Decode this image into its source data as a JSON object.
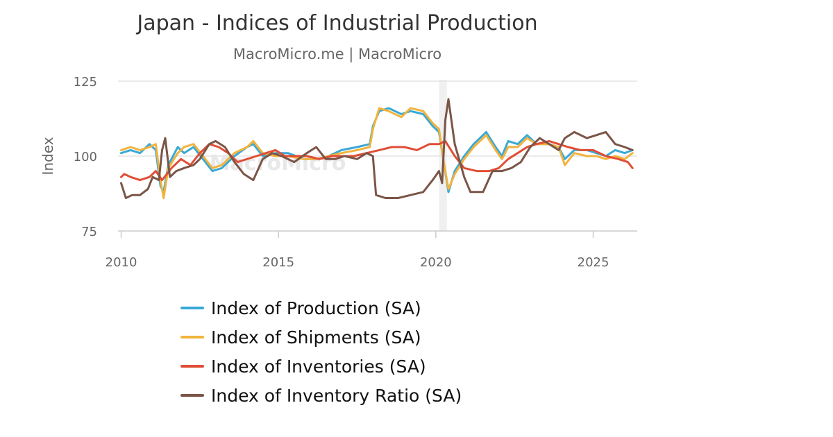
{
  "chart_data": {
    "type": "line",
    "title": "Japan - Indices of Industrial Production",
    "subtitle": "MacroMicro.me | MacroMicro",
    "watermark": "MacroMicro",
    "ylabel": "Index",
    "ylim": [
      75,
      125
    ],
    "xlim": [
      2009.9,
      2026.4
    ],
    "y_ticks": [
      75,
      100,
      125
    ],
    "x_ticks": [
      2010,
      2015,
      2020,
      2025
    ],
    "grid": true,
    "legend_position": "bottom",
    "recession_band": [
      2020.1,
      2020.35
    ],
    "series": [
      {
        "name": "Index of Production (SA)",
        "color": "#3aa9d6",
        "points": [
          [
            2010.0,
            101
          ],
          [
            2010.3,
            102
          ],
          [
            2010.6,
            101
          ],
          [
            2010.9,
            104
          ],
          [
            2011.1,
            102
          ],
          [
            2011.25,
            90
          ],
          [
            2011.35,
            88
          ],
          [
            2011.5,
            97
          ],
          [
            2011.8,
            103
          ],
          [
            2012.0,
            101
          ],
          [
            2012.3,
            103
          ],
          [
            2012.6,
            99
          ],
          [
            2012.9,
            95
          ],
          [
            2013.2,
            96
          ],
          [
            2013.6,
            100
          ],
          [
            2014.0,
            103
          ],
          [
            2014.2,
            104
          ],
          [
            2014.5,
            100
          ],
          [
            2014.9,
            101
          ],
          [
            2015.3,
            101
          ],
          [
            2015.8,
            99
          ],
          [
            2016.2,
            99
          ],
          [
            2016.6,
            100
          ],
          [
            2017.0,
            102
          ],
          [
            2017.5,
            103
          ],
          [
            2017.9,
            104
          ],
          [
            2018.0,
            110
          ],
          [
            2018.2,
            115
          ],
          [
            2018.5,
            116
          ],
          [
            2018.9,
            114
          ],
          [
            2019.2,
            115
          ],
          [
            2019.6,
            114
          ],
          [
            2019.9,
            110
          ],
          [
            2020.1,
            108
          ],
          [
            2020.25,
            98
          ],
          [
            2020.4,
            88
          ],
          [
            2020.6,
            95
          ],
          [
            2020.9,
            100
          ],
          [
            2021.2,
            104
          ],
          [
            2021.6,
            108
          ],
          [
            2021.9,
            103
          ],
          [
            2022.1,
            100
          ],
          [
            2022.3,
            105
          ],
          [
            2022.6,
            104
          ],
          [
            2022.9,
            107
          ],
          [
            2023.2,
            104
          ],
          [
            2023.6,
            104
          ],
          [
            2023.9,
            103
          ],
          [
            2024.1,
            99
          ],
          [
            2024.4,
            102
          ],
          [
            2024.8,
            102
          ],
          [
            2025.1,
            101
          ],
          [
            2025.4,
            100
          ],
          [
            2025.7,
            102
          ],
          [
            2026.0,
            101
          ],
          [
            2026.25,
            102
          ]
        ]
      },
      {
        "name": "Index of Shipments (SA)",
        "color": "#f2b33d",
        "points": [
          [
            2010.0,
            102
          ],
          [
            2010.3,
            103
          ],
          [
            2010.6,
            102
          ],
          [
            2010.9,
            103
          ],
          [
            2011.1,
            104
          ],
          [
            2011.25,
            92
          ],
          [
            2011.35,
            86
          ],
          [
            2011.5,
            96
          ],
          [
            2011.8,
            101
          ],
          [
            2012.0,
            103
          ],
          [
            2012.3,
            104
          ],
          [
            2012.6,
            100
          ],
          [
            2012.9,
            96
          ],
          [
            2013.2,
            97
          ],
          [
            2013.6,
            101
          ],
          [
            2014.0,
            103
          ],
          [
            2014.2,
            105
          ],
          [
            2014.5,
            101
          ],
          [
            2014.9,
            100
          ],
          [
            2015.3,
            100
          ],
          [
            2015.8,
            99
          ],
          [
            2016.2,
            99
          ],
          [
            2016.6,
            100
          ],
          [
            2017.0,
            101
          ],
          [
            2017.5,
            102
          ],
          [
            2017.9,
            103
          ],
          [
            2018.0,
            109
          ],
          [
            2018.2,
            116
          ],
          [
            2018.5,
            115
          ],
          [
            2018.9,
            113
          ],
          [
            2019.2,
            116
          ],
          [
            2019.6,
            115
          ],
          [
            2019.9,
            111
          ],
          [
            2020.1,
            109
          ],
          [
            2020.25,
            98
          ],
          [
            2020.4,
            89
          ],
          [
            2020.6,
            94
          ],
          [
            2020.9,
            99
          ],
          [
            2021.2,
            103
          ],
          [
            2021.6,
            107
          ],
          [
            2021.9,
            102
          ],
          [
            2022.1,
            99
          ],
          [
            2022.3,
            103
          ],
          [
            2022.6,
            103
          ],
          [
            2022.9,
            106
          ],
          [
            2023.2,
            104
          ],
          [
            2023.6,
            104
          ],
          [
            2023.9,
            103
          ],
          [
            2024.1,
            97
          ],
          [
            2024.4,
            101
          ],
          [
            2024.8,
            100
          ],
          [
            2025.1,
            100
          ],
          [
            2025.4,
            99
          ],
          [
            2025.7,
            100
          ],
          [
            2026.0,
            99
          ],
          [
            2026.25,
            101
          ]
        ]
      },
      {
        "name": "Index of Inventories (SA)",
        "color": "#e04e35",
        "points": [
          [
            2010.0,
            93
          ],
          [
            2010.1,
            94
          ],
          [
            2010.3,
            93
          ],
          [
            2010.6,
            92
          ],
          [
            2010.9,
            93
          ],
          [
            2011.1,
            95
          ],
          [
            2011.3,
            92
          ],
          [
            2011.6,
            96
          ],
          [
            2011.9,
            99
          ],
          [
            2012.2,
            97
          ],
          [
            2012.5,
            101
          ],
          [
            2012.8,
            104
          ],
          [
            2013.1,
            103
          ],
          [
            2013.4,
            101
          ],
          [
            2013.7,
            98
          ],
          [
            2014.0,
            99
          ],
          [
            2014.3,
            100
          ],
          [
            2014.6,
            101
          ],
          [
            2014.9,
            102
          ],
          [
            2015.2,
            100
          ],
          [
            2015.5,
            100
          ],
          [
            2015.9,
            100
          ],
          [
            2016.3,
            99
          ],
          [
            2016.7,
            100
          ],
          [
            2017.0,
            100
          ],
          [
            2017.4,
            100
          ],
          [
            2017.8,
            101
          ],
          [
            2018.2,
            102
          ],
          [
            2018.6,
            103
          ],
          [
            2019.0,
            103
          ],
          [
            2019.4,
            102
          ],
          [
            2019.8,
            104
          ],
          [
            2020.1,
            104
          ],
          [
            2020.3,
            105
          ],
          [
            2020.6,
            100
          ],
          [
            2020.9,
            96
          ],
          [
            2021.3,
            95
          ],
          [
            2021.7,
            95
          ],
          [
            2022.0,
            96
          ],
          [
            2022.3,
            99
          ],
          [
            2022.6,
            101
          ],
          [
            2022.9,
            103
          ],
          [
            2023.2,
            104
          ],
          [
            2023.6,
            105
          ],
          [
            2023.9,
            104
          ],
          [
            2024.2,
            103
          ],
          [
            2024.6,
            102
          ],
          [
            2025.0,
            102
          ],
          [
            2025.4,
            100
          ],
          [
            2025.8,
            99
          ],
          [
            2026.1,
            98
          ],
          [
            2026.25,
            96
          ]
        ]
      },
      {
        "name": "Index of Inventory Ratio (SA)",
        "color": "#7b5547",
        "points": [
          [
            2010.0,
            91
          ],
          [
            2010.15,
            86
          ],
          [
            2010.35,
            87
          ],
          [
            2010.6,
            87
          ],
          [
            2010.85,
            89
          ],
          [
            2011.0,
            93
          ],
          [
            2011.2,
            92
          ],
          [
            2011.3,
            102
          ],
          [
            2011.4,
            106
          ],
          [
            2011.55,
            93
          ],
          [
            2011.75,
            95
          ],
          [
            2012.0,
            96
          ],
          [
            2012.3,
            97
          ],
          [
            2012.5,
            99
          ],
          [
            2012.8,
            104
          ],
          [
            2013.0,
            105
          ],
          [
            2013.3,
            103
          ],
          [
            2013.6,
            98
          ],
          [
            2013.9,
            94
          ],
          [
            2014.2,
            92
          ],
          [
            2014.5,
            99
          ],
          [
            2014.8,
            101
          ],
          [
            2015.1,
            100
          ],
          [
            2015.5,
            98
          ],
          [
            2015.9,
            101
          ],
          [
            2016.2,
            103
          ],
          [
            2016.5,
            99
          ],
          [
            2016.8,
            99
          ],
          [
            2017.1,
            100
          ],
          [
            2017.5,
            99
          ],
          [
            2017.8,
            101
          ],
          [
            2018.0,
            100
          ],
          [
            2018.1,
            87
          ],
          [
            2018.4,
            86
          ],
          [
            2018.8,
            86
          ],
          [
            2019.2,
            87
          ],
          [
            2019.6,
            88
          ],
          [
            2019.9,
            92
          ],
          [
            2020.1,
            95
          ],
          [
            2020.2,
            91
          ],
          [
            2020.3,
            112
          ],
          [
            2020.4,
            119
          ],
          [
            2020.6,
            104
          ],
          [
            2020.9,
            93
          ],
          [
            2021.1,
            88
          ],
          [
            2021.5,
            88
          ],
          [
            2021.8,
            95
          ],
          [
            2022.1,
            95
          ],
          [
            2022.4,
            96
          ],
          [
            2022.7,
            98
          ],
          [
            2023.0,
            103
          ],
          [
            2023.3,
            106
          ],
          [
            2023.6,
            104
          ],
          [
            2023.9,
            102
          ],
          [
            2024.1,
            106
          ],
          [
            2024.4,
            108
          ],
          [
            2024.8,
            106
          ],
          [
            2025.1,
            107
          ],
          [
            2025.4,
            108
          ],
          [
            2025.7,
            104
          ],
          [
            2026.0,
            103
          ],
          [
            2026.25,
            102
          ]
        ]
      }
    ]
  }
}
